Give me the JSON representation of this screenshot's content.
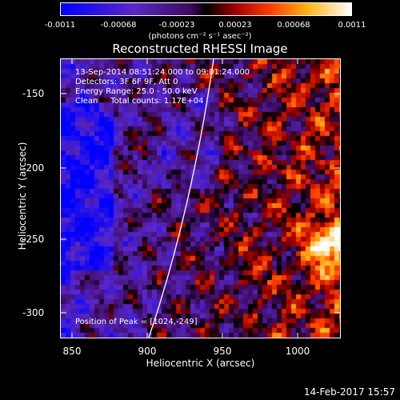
{
  "colorbar": {
    "ticks": [
      "-0.0011",
      "-0.00068",
      "-0.00023",
      "0.00023",
      "0.00068",
      "0.0011"
    ],
    "units": "(photons cm⁻² s⁻¹ asec⁻²)"
  },
  "title": "Reconstructed RHESSI Image",
  "info": {
    "line1": "13-Sep-2014 08:51:24.000 to 09:01:24.000",
    "line2": "Detectors: 3F 6F 9F, Att 0",
    "line3": "Energy Range: 25.0 - 50.0 keV",
    "line4": "Clean     Total counts: 1.17E+04"
  },
  "peak": "Position of Peak = [1024,-249]",
  "axes": {
    "xlabel": "Heliocentric X (arcsec)",
    "ylabel": "Heliocentric Y (arcsec)",
    "xticks": [
      "850",
      "900",
      "950",
      "1000"
    ],
    "yticks": [
      "-150",
      "-200",
      "-250",
      "-300"
    ]
  },
  "timestamp": "14-Feb-2017 15:57",
  "colors": {
    "background": "#000000",
    "axes": "#ffffff",
    "limb": "#ffffff"
  }
}
